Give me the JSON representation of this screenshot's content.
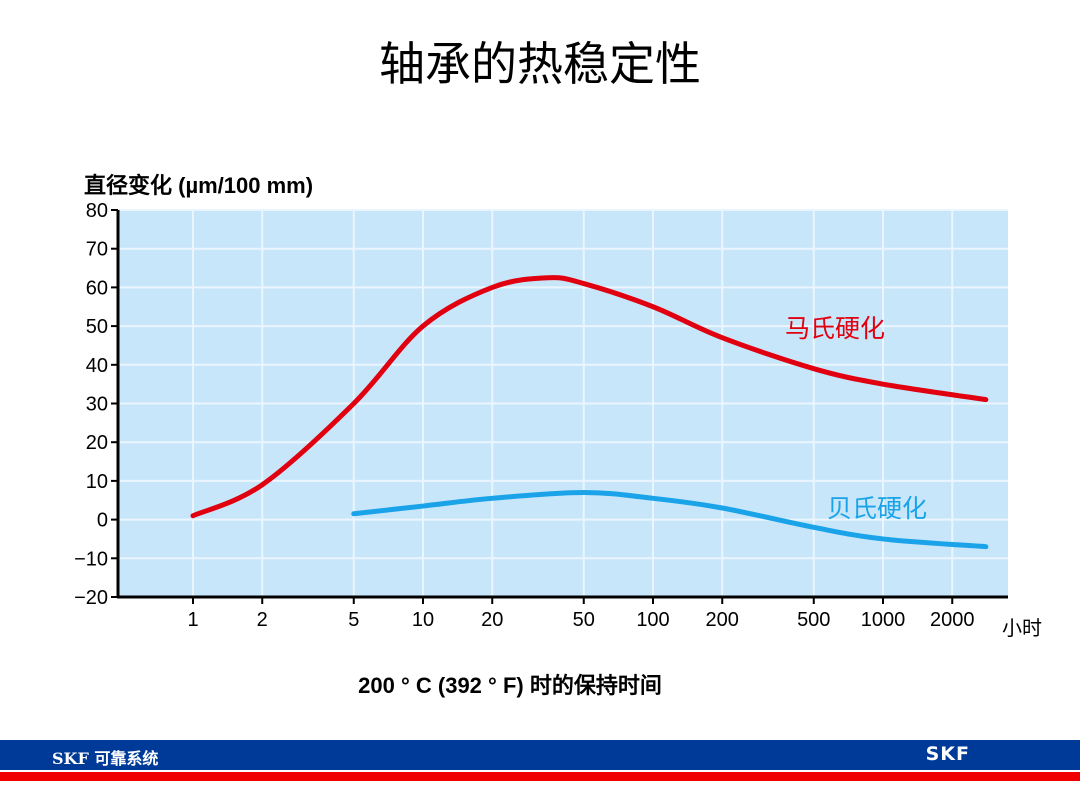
{
  "title": "轴承的热稳定性",
  "footer": {
    "text": "SKF 可靠系统",
    "logo": "SKF"
  },
  "chart_data": {
    "type": "line",
    "ylabel": "直径变化 (µm/100 mm)",
    "xlabel": "200 ° C (392 ° F) 时的保持时间",
    "xunit": "小时",
    "xscale": "log",
    "xlim": [
      0.5,
      4000
    ],
    "ylim": [
      -20,
      80
    ],
    "xticks": [
      1,
      2,
      5,
      10,
      20,
      50,
      100,
      200,
      500,
      1000,
      2000
    ],
    "yticks": [
      -20,
      -10,
      0,
      10,
      20,
      30,
      40,
      50,
      60,
      70,
      80
    ],
    "ytick_labels": [
      "−20",
      "−10",
      "0",
      "10",
      "20",
      "30",
      "40",
      "50",
      "60",
      "70",
      "80"
    ],
    "grid": true,
    "background": "#c8e6fa",
    "series": [
      {
        "name": "马氏硬化",
        "color": "#e0000f",
        "x": [
          1,
          2,
          5,
          10,
          20,
          35,
          50,
          100,
          200,
          500,
          1000,
          2800
        ],
        "y": [
          1,
          9,
          30,
          50,
          60,
          62.5,
          61,
          55,
          47,
          39,
          35,
          31
        ]
      },
      {
        "name": "贝氏硬化",
        "color": "#1aa3e8",
        "x": [
          5,
          10,
          20,
          50,
          100,
          200,
          500,
          1000,
          2800
        ],
        "y": [
          1.5,
          3.5,
          5.5,
          7,
          5.5,
          3,
          -2,
          -5,
          -7
        ]
      }
    ]
  }
}
